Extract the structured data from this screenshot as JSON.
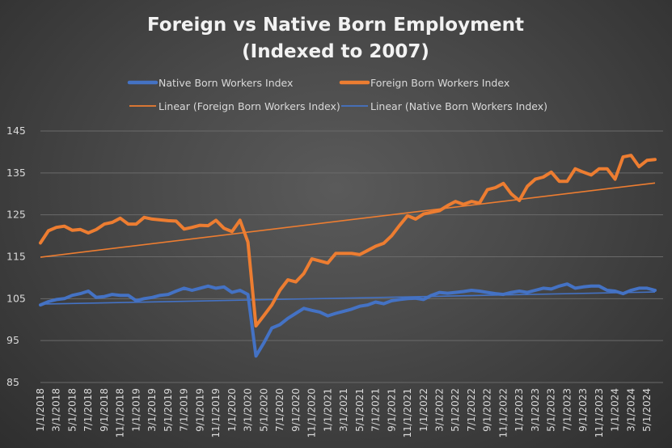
{
  "chart_data": {
    "type": "line",
    "title": "Foreign vs Native Born Employment (Indexed to 2007)",
    "title_lines": [
      "Foreign vs Native Born Employment",
      "(Indexed to 2007)"
    ],
    "ylim": [
      85,
      145
    ],
    "yticks": [
      85,
      95,
      105,
      115,
      125,
      135,
      145
    ],
    "grid": true,
    "legend_position": "top",
    "x": [
      "1/1/2018",
      "2/1/2018",
      "3/1/2018",
      "4/1/2018",
      "5/1/2018",
      "6/1/2018",
      "7/1/2018",
      "8/1/2018",
      "9/1/2018",
      "10/1/2018",
      "11/1/2018",
      "12/1/2018",
      "1/1/2019",
      "2/1/2019",
      "3/1/2019",
      "4/1/2019",
      "5/1/2019",
      "6/1/2019",
      "7/1/2019",
      "8/1/2019",
      "9/1/2019",
      "10/1/2019",
      "11/1/2019",
      "12/1/2019",
      "1/1/2020",
      "2/1/2020",
      "3/1/2020",
      "4/1/2020",
      "5/1/2020",
      "6/1/2020",
      "7/1/2020",
      "8/1/2020",
      "9/1/2020",
      "10/1/2020",
      "11/1/2020",
      "12/1/2020",
      "1/1/2021",
      "2/1/2021",
      "3/1/2021",
      "4/1/2021",
      "5/1/2021",
      "6/1/2021",
      "7/1/2021",
      "8/1/2021",
      "9/1/2021",
      "10/1/2021",
      "11/1/2021",
      "12/1/2021",
      "1/1/2022",
      "2/1/2022",
      "3/1/2022",
      "4/1/2022",
      "5/1/2022",
      "6/1/2022",
      "7/1/2022",
      "8/1/2022",
      "9/1/2022",
      "10/1/2022",
      "11/1/2022",
      "12/1/2022",
      "1/1/2023",
      "2/1/2023",
      "3/1/2023",
      "4/1/2023",
      "5/1/2023",
      "6/1/2023",
      "7/1/2023",
      "8/1/2023",
      "9/1/2023",
      "10/1/2023",
      "11/1/2023",
      "12/1/2023",
      "1/1/2024",
      "2/1/2024",
      "3/1/2024",
      "4/1/2024",
      "5/1/2024",
      "6/1/2024"
    ],
    "x_tick_labels": [
      "1/1/2018",
      "3/1/2018",
      "5/1/2018",
      "7/1/2018",
      "9/1/2018",
      "11/1/2018",
      "1/1/2019",
      "3/1/2019",
      "5/1/2019",
      "7/1/2019",
      "9/1/2019",
      "11/1/2019",
      "1/1/2020",
      "3/1/2020",
      "5/1/2020",
      "7/1/2020",
      "9/1/2020",
      "11/1/2020",
      "1/1/2021",
      "3/1/2021",
      "5/1/2021",
      "7/1/2021",
      "9/1/2021",
      "11/1/2021",
      "1/1/2022",
      "3/1/2022",
      "5/1/2022",
      "7/1/2022",
      "9/1/2022",
      "11/1/2022",
      "1/1/2023",
      "3/1/2023",
      "5/1/2023",
      "7/1/2023",
      "9/1/2023",
      "11/1/2023",
      "1/1/2024",
      "3/1/2024",
      "5/1/2024"
    ],
    "series": [
      {
        "name": "Native Born Workers Index",
        "color": "#4472c4",
        "values": [
          103.5,
          104.3,
          104.8,
          105.0,
          105.8,
          106.2,
          106.8,
          105.3,
          105.5,
          106.0,
          105.8,
          105.8,
          104.5,
          105.0,
          105.3,
          105.8,
          106.0,
          106.8,
          107.5,
          107.0,
          107.5,
          108.0,
          107.5,
          107.8,
          106.5,
          107.0,
          106.0,
          91.3,
          94.5,
          98.0,
          98.8,
          100.3,
          101.5,
          102.7,
          102.2,
          101.8,
          100.9,
          101.5,
          102.0,
          102.5,
          103.2,
          103.5,
          104.2,
          103.8,
          104.5,
          104.8,
          105.0,
          105.1,
          104.8,
          105.8,
          106.5,
          106.3,
          106.5,
          106.7,
          107.0,
          106.8,
          106.5,
          106.2,
          106.0,
          106.5,
          106.8,
          106.5,
          107.0,
          107.5,
          107.3,
          108.0,
          108.5,
          107.5,
          107.8,
          108.0,
          108.0,
          107.0,
          106.8,
          106.2,
          107.0,
          107.5,
          107.5,
          107.0
        ]
      },
      {
        "name": "Foreign Born Workers Index",
        "color": "#ed7d31",
        "values": [
          118.3,
          121.2,
          122.0,
          122.3,
          121.3,
          121.5,
          120.7,
          121.5,
          122.8,
          123.2,
          124.2,
          122.8,
          122.8,
          124.4,
          124.0,
          123.8,
          123.6,
          123.5,
          121.6,
          122.0,
          122.5,
          122.4,
          123.7,
          121.8,
          121.0,
          123.7,
          118.5,
          98.5,
          101.0,
          103.5,
          107.0,
          109.5,
          109.0,
          111.0,
          114.5,
          114.0,
          113.5,
          115.8,
          115.8,
          115.8,
          115.5,
          116.5,
          117.5,
          118.2,
          120.0,
          122.5,
          124.8,
          124.0,
          125.2,
          125.6,
          126.0,
          127.2,
          128.2,
          127.5,
          128.2,
          127.8,
          131.0,
          131.5,
          132.5,
          130.0,
          128.4,
          131.8,
          133.5,
          134.0,
          135.2,
          133.0,
          133.0,
          136.0,
          135.2,
          134.5,
          136.0,
          136.0,
          133.5,
          138.8,
          139.2,
          136.5,
          138.0,
          138.2
        ]
      }
    ],
    "trendlines": [
      {
        "name": "Linear (Foreign Born Workers Index)",
        "color": "#ed7d31",
        "start": 114.9,
        "end": 132.6
      },
      {
        "name": "Linear (Native Born Workers Index)",
        "color": "#4472c4",
        "start": 103.7,
        "end": 106.6
      }
    ]
  }
}
